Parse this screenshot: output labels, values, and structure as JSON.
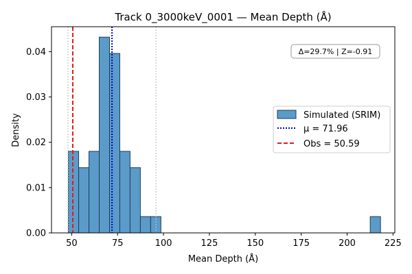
{
  "chart_data": {
    "type": "bar",
    "title": "Track 0_3000keV_0001 — Mean Depth (Å)",
    "xlabel": "Mean Depth (Å)",
    "ylabel": "Density",
    "xlim": [
      39,
      226
    ],
    "ylim": [
      0,
      0.0455
    ],
    "xticks": [
      50,
      75,
      100,
      125,
      150,
      175,
      200,
      225
    ],
    "xtick_labels": [
      "50",
      "75",
      "100",
      "125",
      "150",
      "175",
      "200",
      "225"
    ],
    "yticks": [
      0.0,
      0.01,
      0.02,
      0.03,
      0.04
    ],
    "ytick_labels": [
      "0.00",
      "0.01",
      "0.02",
      "0.03",
      "0.04"
    ],
    "grid": false,
    "bin_width": 5.6,
    "bins": [
      {
        "x0": 48.2,
        "value": 0.018
      },
      {
        "x0": 53.8,
        "value": 0.0144
      },
      {
        "x0": 59.4,
        "value": 0.018
      },
      {
        "x0": 65.0,
        "value": 0.0432
      },
      {
        "x0": 70.6,
        "value": 0.0396
      },
      {
        "x0": 76.2,
        "value": 0.018
      },
      {
        "x0": 81.8,
        "value": 0.0144
      },
      {
        "x0": 87.4,
        "value": 0.0036
      },
      {
        "x0": 93.0,
        "value": 0.0036
      },
      {
        "x0": 98.6,
        "value": 0.0
      },
      {
        "x0": 212.6,
        "value": 0.0036
      }
    ],
    "bar_color": "#5b9bc9",
    "bar_edge_color": "#1f3d55",
    "vlines": [
      {
        "x": 71.96,
        "style": "dotted",
        "color": "#0000cc",
        "label": "μ = 71.96"
      },
      {
        "x": 50.59,
        "style": "dashed",
        "color": "#e41a1c",
        "label": "Obs = 50.59"
      },
      {
        "x": 48.0,
        "style": "dotted",
        "color": "#c0c0c0",
        "label": ""
      },
      {
        "x": 95.9,
        "style": "dotted",
        "color": "#c0c0c0",
        "label": ""
      }
    ],
    "legend": {
      "position": "center-right",
      "entries": [
        "Simulated (SRIM)",
        "μ = 71.96",
        "Obs = 50.59"
      ]
    },
    "annotation": "Δ=29.7% | Z=-0.91"
  }
}
